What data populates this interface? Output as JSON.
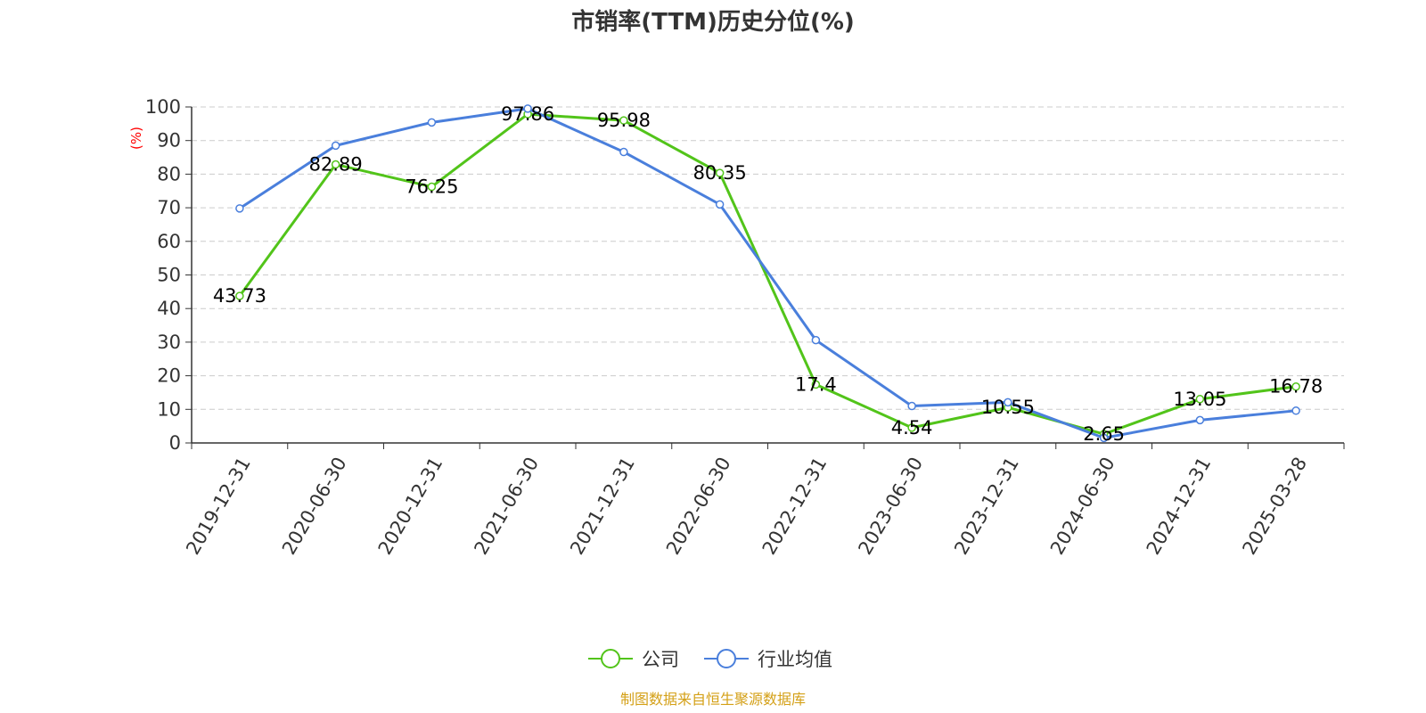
{
  "chart_data": {
    "type": "line",
    "title": "市销率(TTM)历史分位(%)",
    "ylabel": "(%)",
    "ylim": [
      0,
      100
    ],
    "yticks": [
      0,
      10,
      20,
      30,
      40,
      50,
      60,
      70,
      80,
      90,
      100
    ],
    "grid": true,
    "legend_position": "bottom",
    "categories": [
      "2019-12-31",
      "2020-06-30",
      "2020-12-31",
      "2021-06-30",
      "2021-12-31",
      "2022-06-30",
      "2022-12-31",
      "2023-06-30",
      "2023-12-31",
      "2024-06-30",
      "2024-12-31",
      "2025-03-28"
    ],
    "series": [
      {
        "name": "公司",
        "color": "#52c41a",
        "show_labels": true,
        "values": [
          43.73,
          82.89,
          76.25,
          97.86,
          95.98,
          80.35,
          17.4,
          4.54,
          10.55,
          2.65,
          13.05,
          16.78
        ]
      },
      {
        "name": "行业均值",
        "color": "#4a7fdc",
        "show_labels": false,
        "values": [
          69.8,
          88.5,
          95.4,
          99.5,
          86.6,
          71.0,
          30.6,
          11.0,
          12.1,
          1.5,
          6.8,
          9.6
        ]
      }
    ]
  },
  "ylabel_color": "#ff0000",
  "source": {
    "text": "制图数据来自恒生聚源数据库",
    "color": "#d4a017"
  }
}
